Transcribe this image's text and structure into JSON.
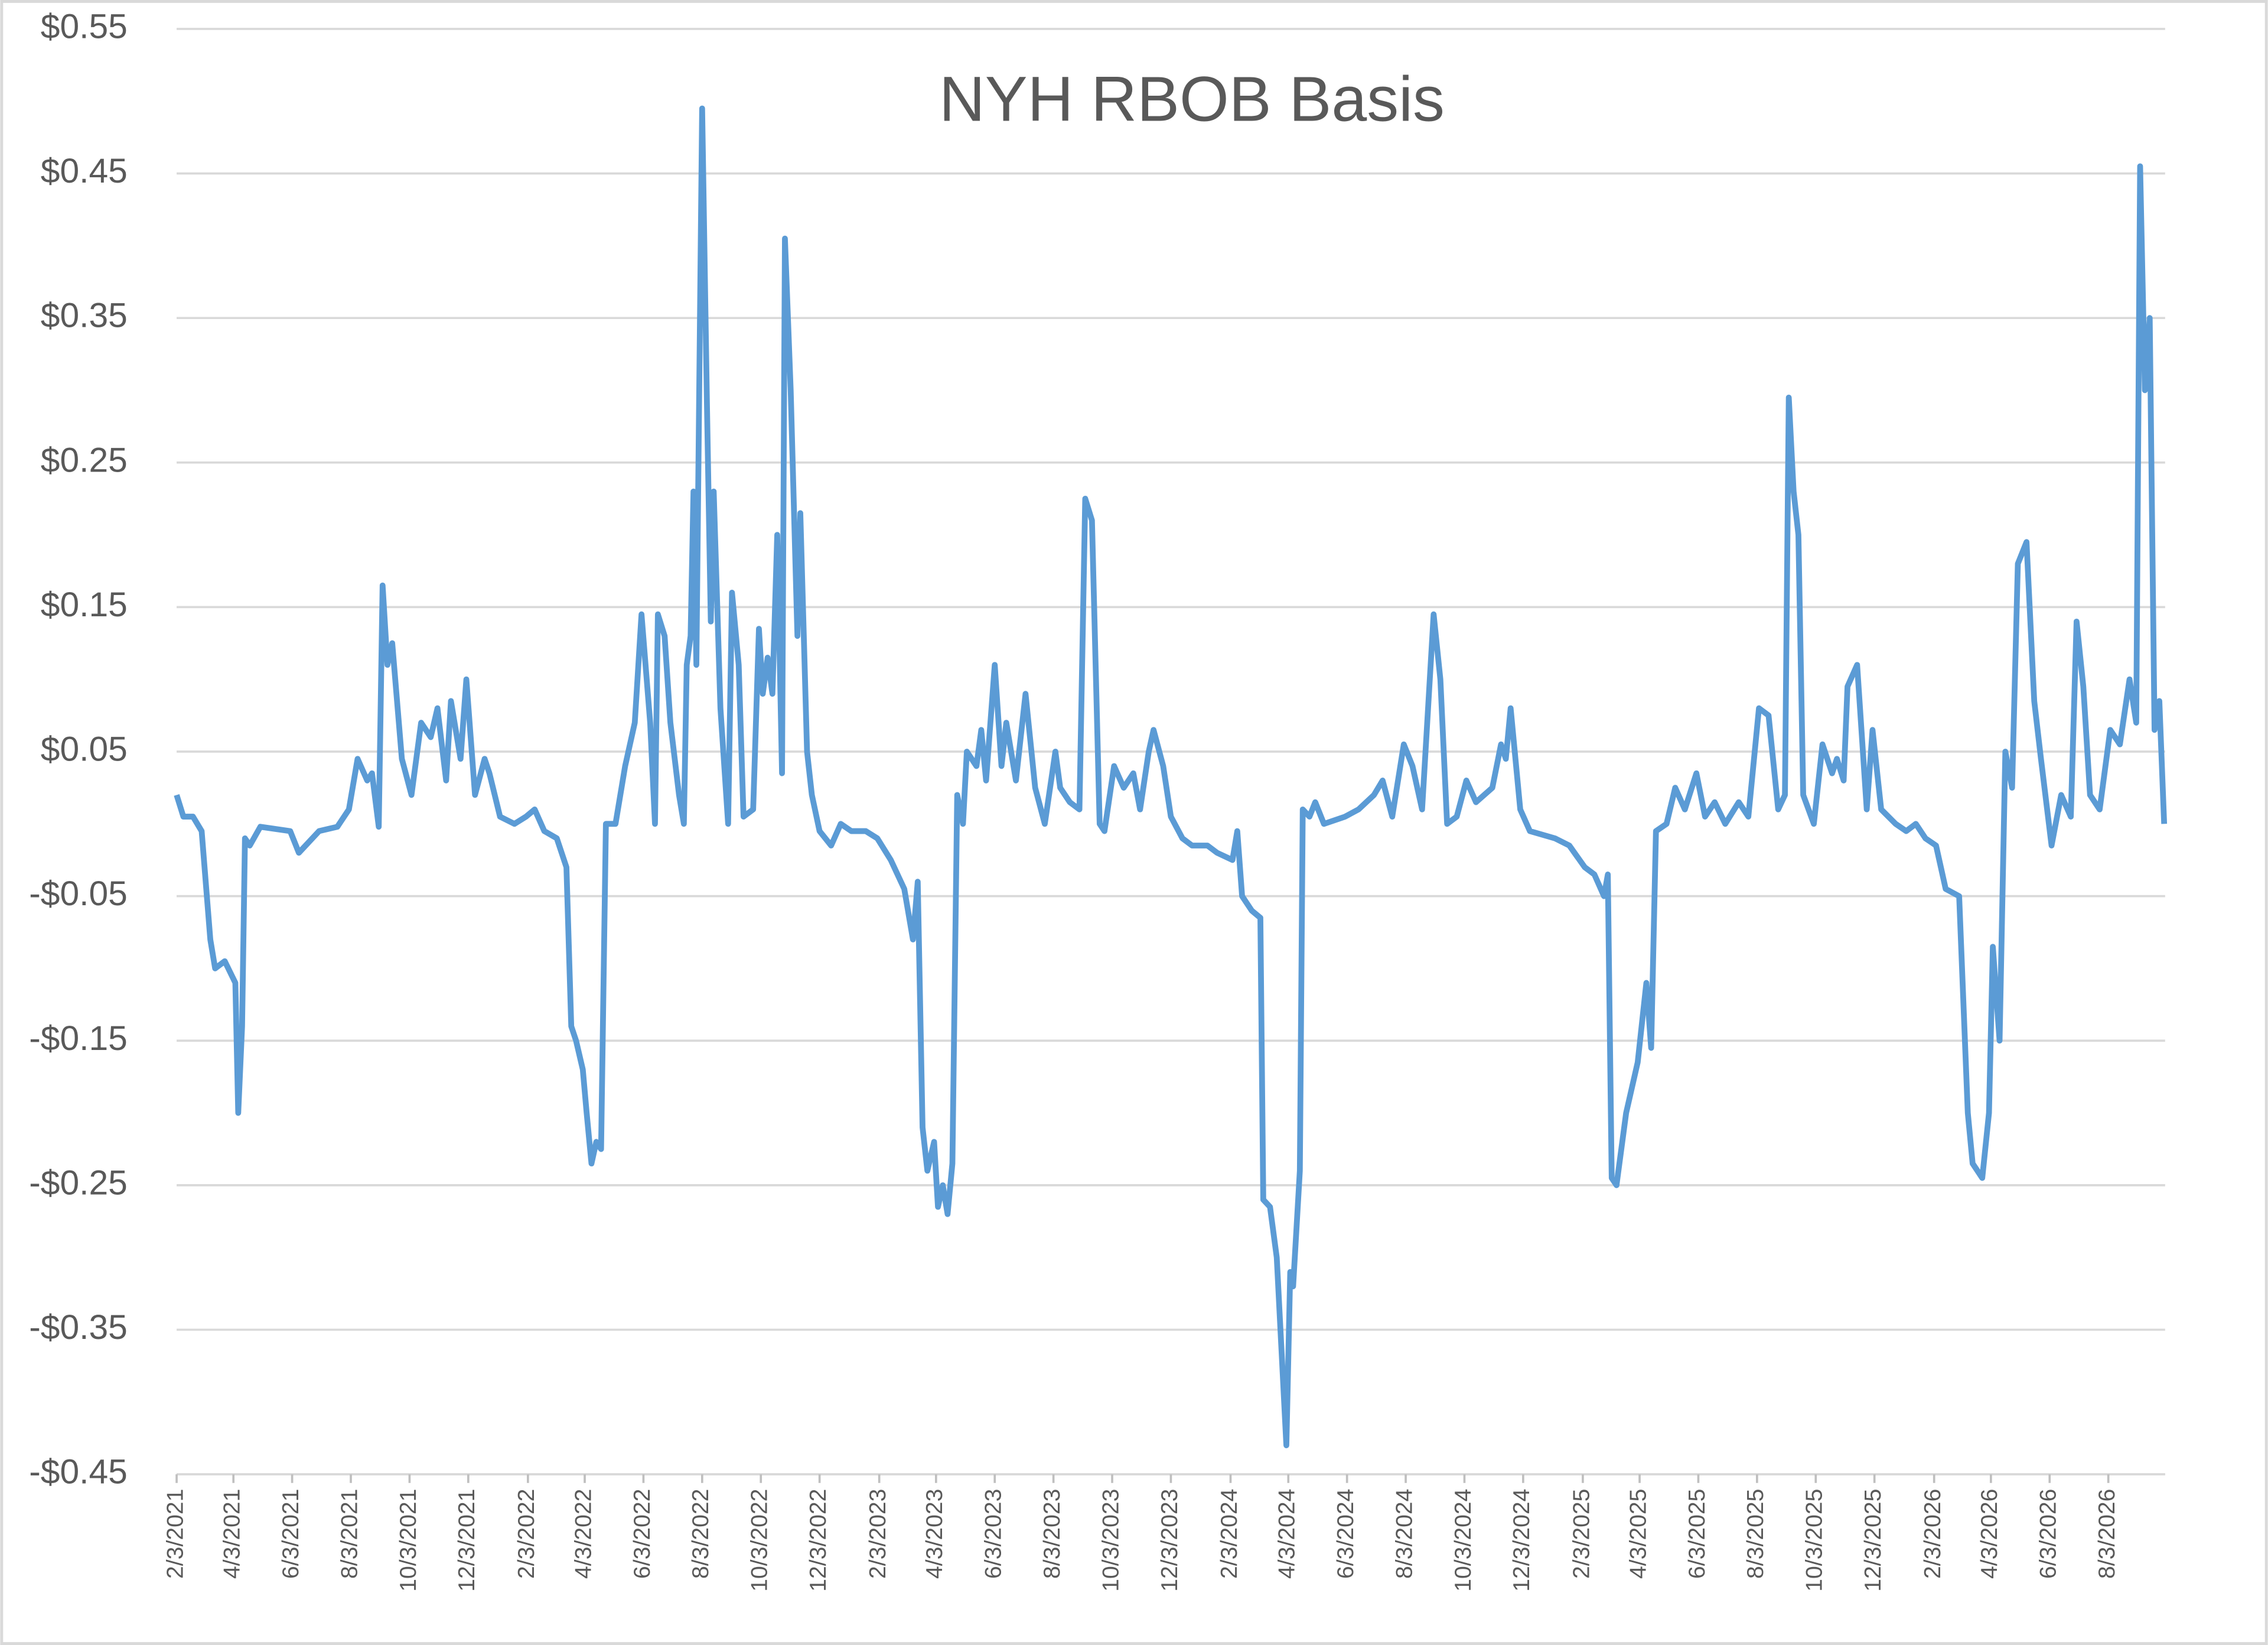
{
  "chart_data": {
    "type": "line",
    "title": "NYH RBOB Basis",
    "xlim": [
      "2/3/2021",
      "10/1/2026"
    ],
    "xticks": [
      "2/3/2021",
      "4/3/2021",
      "6/3/2021",
      "8/3/2021",
      "10/3/2021",
      "12/3/2021",
      "2/3/2022",
      "4/3/2022",
      "6/3/2022",
      "8/3/2022",
      "10/3/2022",
      "12/3/2022",
      "2/3/2023",
      "4/3/2023",
      "6/3/2023",
      "8/3/2023",
      "10/3/2023",
      "12/3/2023",
      "2/3/2024",
      "4/3/2024",
      "6/3/2024",
      "8/3/2024",
      "10/3/2024",
      "12/3/2024",
      "2/3/2025",
      "4/3/2025",
      "6/3/2025",
      "8/3/2025",
      "10/3/2025",
      "12/3/2025",
      "2/3/2026",
      "4/3/2026",
      "6/3/2026",
      "8/3/2026"
    ],
    "ylim": [
      -0.45,
      0.55
    ],
    "yticks": [
      {
        "value": -0.45,
        "label": "-$0.45"
      },
      {
        "value": -0.35,
        "label": "-$0.35"
      },
      {
        "value": -0.25,
        "label": "-$0.25"
      },
      {
        "value": -0.15,
        "label": "-$0.15"
      },
      {
        "value": -0.05,
        "label": "-$0.05"
      },
      {
        "value": 0.05,
        "label": "$0.05"
      },
      {
        "value": 0.15,
        "label": "$0.15"
      },
      {
        "value": 0.25,
        "label": "$0.25"
      },
      {
        "value": 0.35,
        "label": "$0.35"
      },
      {
        "value": 0.45,
        "label": "$0.45"
      },
      {
        "value": 0.55,
        "label": "$0.55"
      }
    ],
    "grid": true,
    "color": "#5b9bd5",
    "x": [
      "2/3/2021",
      "2/10/2021",
      "2/20/2021",
      "3/1/2021",
      "3/10/2021",
      "3/15/2021",
      "3/25/2021",
      "4/5/2021",
      "4/8/2021",
      "4/12/2021",
      "4/15/2021",
      "4/20/2021",
      "5/1/2021",
      "6/1/2021",
      "6/10/2021",
      "7/1/2021",
      "7/20/2021",
      "8/1/2021",
      "8/10/2021",
      "8/20/2021",
      "8/25/2021",
      "9/1/2021",
      "9/5/2021",
      "9/10/2021",
      "9/15/2021",
      "9/25/2021",
      "10/5/2021",
      "10/15/2021",
      "10/25/2021",
      "11/1/2021",
      "11/10/2021",
      "11/15/2021",
      "11/25/2021",
      "12/1/2021",
      "12/10/2021",
      "12/20/2021",
      "12/25/2021",
      "1/5/2022",
      "1/20/2022",
      "2/1/2022",
      "2/10/2022",
      "2/20/2022",
      "3/5/2022",
      "3/15/2022",
      "3/20/2022",
      "3/25/2022",
      "4/1/2022",
      "4/5/2022",
      "4/10/2022",
      "4/15/2022",
      "4/20/2022",
      "4/25/2022",
      "5/5/2022",
      "5/15/2022",
      "5/25/2022",
      "6/1/2022",
      "6/10/2022",
      "6/15/2022",
      "6/18/2022",
      "6/25/2022",
      "7/1/2022",
      "7/10/2022",
      "7/15/2022",
      "7/18/2022",
      "7/22/2022",
      "7/25/2022",
      "7/28/2022",
      "8/3/2022",
      "8/8/2022",
      "8/12/2022",
      "8/15/2022",
      "8/22/2022",
      "8/30/2022",
      "9/3/2022",
      "9/10/2022",
      "9/15/2022",
      "9/25/2022",
      "10/1/2022",
      "10/5/2022",
      "10/10/2022",
      "10/15/2022",
      "10/20/2022",
      "10/25/2022",
      "10/28/2022",
      "11/3/2022",
      "11/10/2022",
      "11/13/2022",
      "11/20/2022",
      "11/25/2022",
      "12/3/2022",
      "12/15/2022",
      "12/25/2022",
      "1/5/2023",
      "1/20/2023",
      "2/1/2023",
      "2/15/2023",
      "3/1/2023",
      "3/10/2023",
      "3/15/2023",
      "3/20/2023",
      "3/25/2023",
      "4/1/2023",
      "4/5/2023",
      "4/10/2023",
      "4/15/2023",
      "4/20/2023",
      "4/25/2023",
      "5/1/2023",
      "5/5/2023",
      "5/15/2023",
      "5/20/2023",
      "5/25/2023",
      "6/3/2023",
      "6/10/2023",
      "6/15/2023",
      "6/25/2023",
      "7/5/2023",
      "7/15/2023",
      "7/25/2023",
      "8/5/2023",
      "8/10/2023",
      "8/20/2023",
      "8/30/2023",
      "9/5/2023",
      "9/12/2023",
      "9/20/2023",
      "9/25/2023",
      "10/5/2023",
      "10/15/2023",
      "10/25/2023",
      "11/1/2023",
      "11/10/2023",
      "11/15/2023",
      "11/25/2023",
      "12/3/2023",
      "12/15/2023",
      "12/25/2023",
      "1/10/2024",
      "1/20/2024",
      "2/5/2024",
      "2/10/2024",
      "2/15/2024",
      "2/25/2024",
      "3/5/2024",
      "3/8/2024",
      "3/15/2024",
      "3/22/2024",
      "3/27/2024",
      "4/1/2024",
      "4/5/2024",
      "4/8/2024",
      "4/15/2024",
      "4/18/2024",
      "4/25/2024",
      "5/1/2024",
      "5/10/2024",
      "6/1/2024",
      "6/15/2024",
      "7/1/2024",
      "7/10/2024",
      "7/20/2024",
      "8/1/2024",
      "8/10/2024",
      "8/20/2024",
      "9/1/2024",
      "9/8/2024",
      "9/15/2024",
      "9/25/2024",
      "10/5/2024",
      "10/15/2024",
      "11/1/2024",
      "11/10/2024",
      "11/15/2024",
      "11/20/2024",
      "11/30/2024",
      "12/10/2024",
      "1/5/2025",
      "1/20/2025",
      "2/5/2025",
      "2/15/2025",
      "2/25/2025",
      "3/1/2025",
      "3/5/2025",
      "3/10/2025",
      "3/20/2025",
      "4/1/2025",
      "4/10/2025",
      "4/15/2025",
      "4/20/2025",
      "5/1/2025",
      "5/10/2025",
      "5/20/2025",
      "6/1/2025",
      "6/10/2025",
      "6/20/2025",
      "7/1/2025",
      "7/15/2025",
      "7/25/2025",
      "8/5/2025",
      "8/15/2025",
      "8/25/2025",
      "9/1/2025",
      "9/5/2025",
      "9/10/2025",
      "9/15/2025",
      "9/20/2025",
      "10/1/2025",
      "10/10/2025",
      "10/20/2025",
      "10/25/2025",
      "11/1/2025",
      "11/5/2025",
      "11/15/2025",
      "11/25/2025",
      "12/1/2025",
      "12/10/2025",
      "12/25/2025",
      "1/5/2026",
      "1/15/2026",
      "1/25/2026",
      "2/5/2026",
      "2/15/2026",
      "3/1/2026",
      "3/10/2026",
      "3/15/2026",
      "3/25/2026",
      "4/1/2026",
      "4/5/2026",
      "4/12/2026",
      "4/18/2026",
      "4/25/2026",
      "5/1/2026",
      "5/10/2026",
      "5/18/2026",
      "5/25/2026",
      "6/5/2026",
      "6/15/2026",
      "6/25/2026",
      "7/1/2026",
      "7/8/2026",
      "7/15/2026",
      "7/25/2026",
      "8/5/2026",
      "8/15/2026",
      "8/25/2026",
      "9/1/2026",
      "9/5/2026",
      "9/10/2026",
      "9/15/2026",
      "9/20/2026",
      "9/25/2026",
      "9/30/2026"
    ],
    "values": [
      0.02,
      0.005,
      0.005,
      -0.005,
      -0.08,
      -0.1,
      -0.095,
      -0.11,
      -0.2,
      -0.14,
      -0.01,
      -0.015,
      -0.002,
      -0.005,
      -0.02,
      -0.005,
      -0.002,
      0.01,
      0.045,
      0.03,
      0.035,
      -0.002,
      0.165,
      0.11,
      0.125,
      0.045,
      0.02,
      0.07,
      0.06,
      0.08,
      0.03,
      0.085,
      0.045,
      0.1,
      0.02,
      0.045,
      0.035,
      0.005,
      0.0,
      0.005,
      0.01,
      -0.005,
      -0.01,
      -0.03,
      -0.14,
      -0.15,
      -0.17,
      -0.2,
      -0.235,
      -0.22,
      -0.225,
      0.0,
      0.0,
      0.04,
      0.07,
      0.145,
      0.07,
      0.0,
      0.145,
      0.13,
      0.07,
      0.02,
      0.0,
      0.11,
      0.13,
      0.23,
      0.11,
      0.495,
      0.29,
      0.14,
      0.23,
      0.08,
      0.0,
      0.16,
      0.11,
      0.005,
      0.01,
      0.135,
      0.09,
      0.115,
      0.09,
      0.2,
      0.035,
      0.405,
      0.3,
      0.13,
      0.215,
      0.05,
      0.02,
      -0.005,
      -0.015,
      0.0,
      -0.005,
      -0.005,
      -0.01,
      -0.025,
      -0.045,
      -0.08,
      -0.04,
      -0.21,
      -0.24,
      -0.22,
      -0.265,
      -0.25,
      -0.27,
      -0.235,
      0.02,
      0.0,
      0.05,
      0.04,
      0.065,
      0.03,
      0.11,
      0.04,
      0.07,
      0.03,
      0.09,
      0.025,
      0.0,
      0.05,
      0.025,
      0.015,
      0.01,
      0.225,
      0.21,
      0.0,
      -0.005,
      0.04,
      0.025,
      0.035,
      0.01,
      0.05,
      0.065,
      0.04,
      0.005,
      -0.01,
      -0.015,
      -0.015,
      -0.02,
      -0.025,
      -0.005,
      -0.05,
      -0.06,
      -0.065,
      -0.26,
      -0.265,
      -0.3,
      -0.365,
      -0.43,
      -0.31,
      -0.32,
      -0.24,
      0.01,
      0.005,
      0.015,
      0.0,
      0.005,
      0.01,
      0.02,
      0.03,
      0.005,
      0.055,
      0.04,
      0.01,
      0.145,
      0.1,
      0.0,
      0.005,
      0.03,
      0.015,
      0.025,
      0.055,
      0.045,
      0.08,
      0.01,
      -0.005,
      -0.01,
      -0.015,
      -0.03,
      -0.035,
      -0.05,
      -0.035,
      -0.245,
      -0.25,
      -0.2,
      -0.165,
      -0.11,
      -0.155,
      -0.005,
      0.0,
      0.025,
      0.01,
      0.035,
      0.005,
      0.015,
      0.0,
      0.015,
      0.005,
      0.08,
      0.075,
      0.01,
      0.02,
      0.295,
      0.23,
      0.2,
      0.02,
      0.0,
      0.055,
      0.035,
      0.045,
      0.03,
      0.095,
      0.11,
      0.01,
      0.065,
      0.01,
      0.0,
      -0.005,
      0.0,
      -0.01,
      -0.015,
      -0.045,
      -0.05,
      -0.2,
      -0.235,
      -0.245,
      -0.2,
      -0.085,
      -0.15,
      0.05,
      0.025,
      0.18,
      0.195,
      0.085,
      0.045,
      -0.015,
      0.02,
      0.005,
      0.14,
      0.095,
      0.02,
      0.01,
      0.065,
      0.055,
      0.1,
      0.07,
      0.455,
      0.3,
      0.35,
      0.065,
      0.085,
      0.0
    ]
  }
}
